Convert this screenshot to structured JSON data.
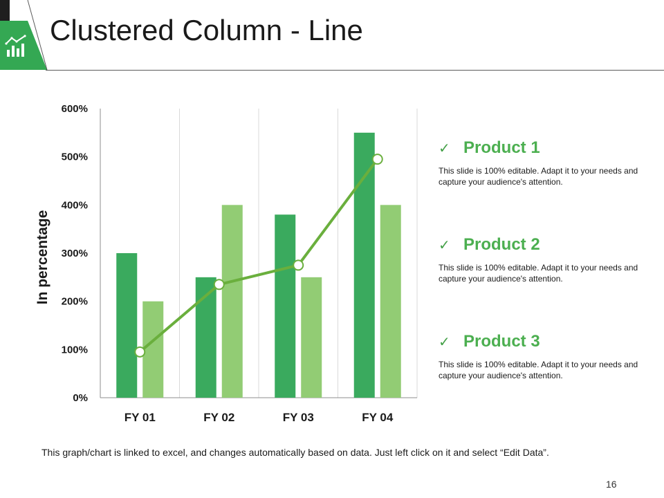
{
  "title": "Clustered Column - Line",
  "colors": {
    "accent": "#34a853",
    "dark_green": "#3aaa5e",
    "light_green": "#92cc74",
    "line_green": "#6aaf3d"
  },
  "header_icon": "chart-growth-icon",
  "chart_data": {
    "type": "bar",
    "categories": [
      "FY 01",
      "FY 02",
      "FY 03",
      "FY 04"
    ],
    "series": [
      {
        "type": "bar",
        "values": [
          300,
          250,
          380,
          550
        ],
        "color": "#3aaa5e"
      },
      {
        "type": "bar",
        "values": [
          200,
          400,
          250,
          400
        ],
        "color": "#92cc74"
      },
      {
        "type": "line",
        "values": [
          95,
          235,
          275,
          495
        ],
        "color": "#6aaf3d"
      }
    ],
    "ylabel": "In percentage",
    "ylim": [
      0,
      600
    ],
    "yticks": [
      "0%",
      "100%",
      "200%",
      "300%",
      "400%",
      "500%",
      "600%"
    ],
    "grid": "vertical category separators"
  },
  "products": [
    {
      "name": "Product 1",
      "desc": "This slide is 100% editable. Adapt it to your needs and capture your audience's attention."
    },
    {
      "name": "Product 2",
      "desc": "This slide is 100% editable. Adapt it to your needs and capture your audience's attention."
    },
    {
      "name": "Product 3",
      "desc": "This slide is 100% editable. Adapt it to your needs and capture your audience's attention."
    }
  ],
  "footnote": "This graph/chart is linked to excel, and changes automatically based on data. Just left click on it and select “Edit Data”.",
  "page_number": "16"
}
